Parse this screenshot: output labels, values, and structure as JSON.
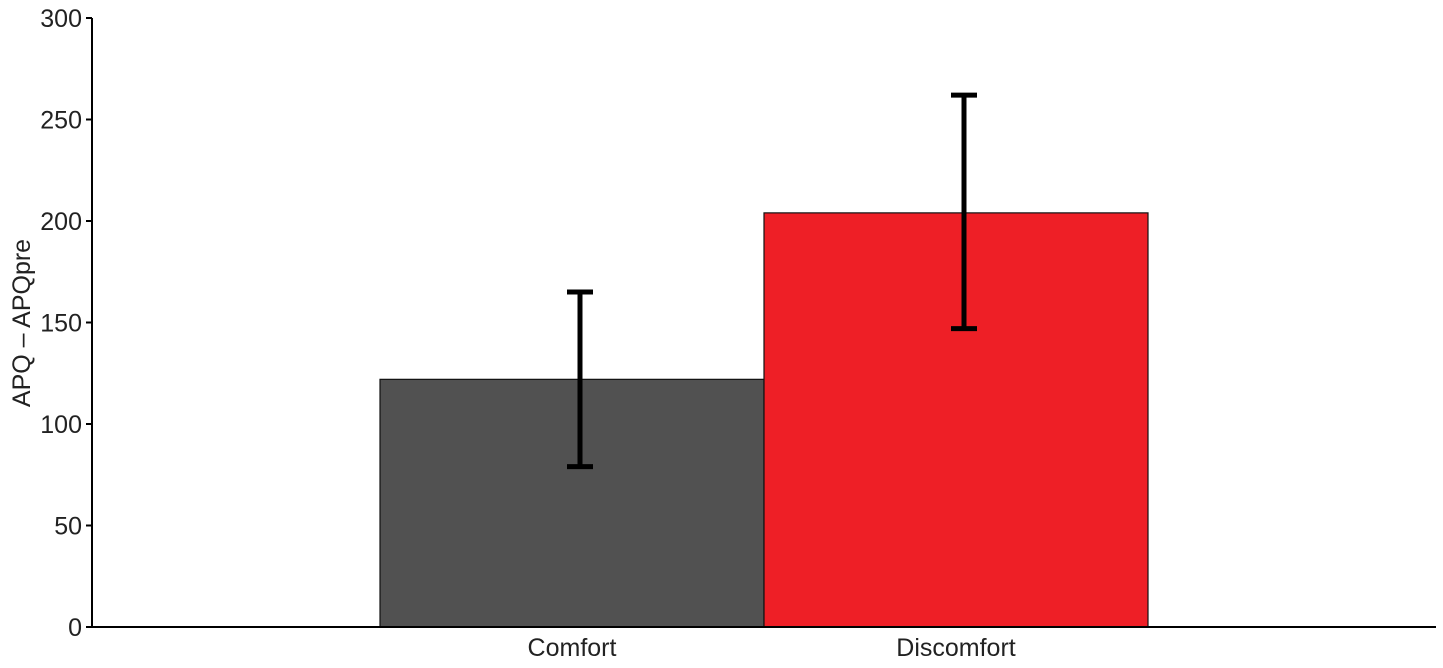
{
  "chart_data": {
    "type": "bar",
    "categories": [
      "Comfort",
      "Discomfort"
    ],
    "values": [
      122,
      204
    ],
    "error_bars": [
      {
        "low": 79,
        "high": 165
      },
      {
        "low": 147,
        "high": 262
      }
    ],
    "colors": [
      "#515151",
      "#ee1f26"
    ],
    "title": "",
    "xlabel": "",
    "ylabel": "APQ – APQpre",
    "ylim": [
      0,
      300
    ],
    "yticks": [
      0,
      50,
      100,
      150,
      200,
      250,
      300
    ],
    "grid": false,
    "legend": "none"
  }
}
